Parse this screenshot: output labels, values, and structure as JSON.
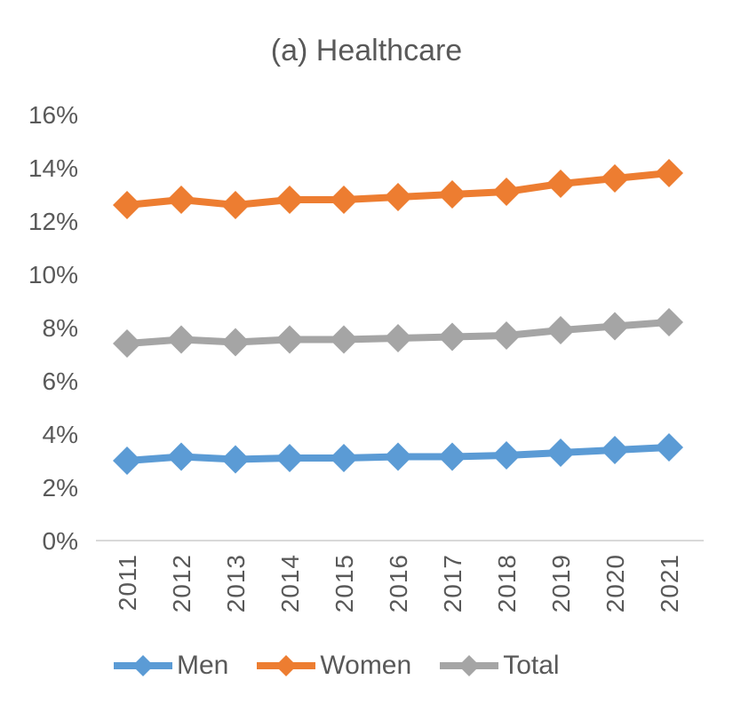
{
  "chart_data": {
    "type": "line",
    "title": "(a) Healthcare",
    "x": [
      "2011",
      "2012",
      "2013",
      "2014",
      "2015",
      "2016",
      "2017",
      "2018",
      "2019",
      "2020",
      "2021"
    ],
    "series": [
      {
        "name": "Men",
        "color": "#5B9BD5",
        "values": [
          3.0,
          3.15,
          3.05,
          3.1,
          3.1,
          3.15,
          3.15,
          3.2,
          3.3,
          3.4,
          3.5
        ]
      },
      {
        "name": "Women",
        "color": "#ED7D31",
        "values": [
          12.6,
          12.8,
          12.6,
          12.8,
          12.8,
          12.9,
          13.0,
          13.1,
          13.4,
          13.6,
          13.8
        ]
      },
      {
        "name": "Total",
        "color": "#A5A5A5",
        "values": [
          7.4,
          7.55,
          7.45,
          7.55,
          7.55,
          7.6,
          7.65,
          7.7,
          7.9,
          8.05,
          8.2
        ]
      }
    ],
    "ylim": [
      0,
      16
    ],
    "ytick_step": 2,
    "ytick_suffix": "%",
    "grid": false,
    "legend_position": "bottom",
    "marker": "diamond",
    "axis_line_color": "#D9D9D9",
    "text_color": "#595959"
  }
}
